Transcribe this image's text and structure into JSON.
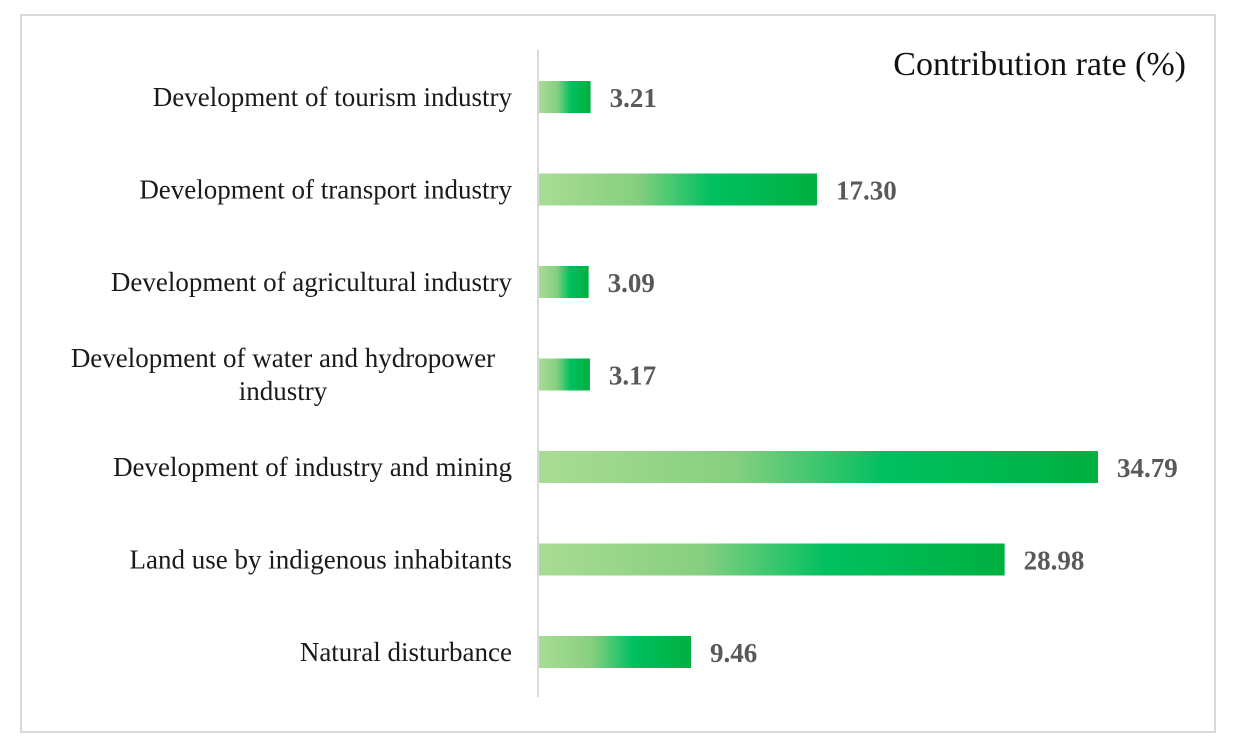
{
  "chart_data": {
    "type": "bar",
    "orientation": "horizontal",
    "title": "Contribution rate (%)",
    "xlabel": "",
    "ylabel": "",
    "categories": [
      [
        "Development of tourism industry"
      ],
      [
        "Development of transport industry"
      ],
      [
        "Development of agricultural industry"
      ],
      [
        "Development of water and hydropower",
        "industry"
      ],
      [
        "Development of industry and mining"
      ],
      [
        "Land use by indigenous inhabitants"
      ],
      [
        "Natural disturbance"
      ]
    ],
    "values": [
      3.21,
      17.3,
      3.09,
      3.17,
      34.79,
      28.98,
      9.46
    ],
    "value_labels": [
      "3.21",
      "17.30",
      "3.09",
      "3.17",
      "34.79",
      "28.98",
      "9.46"
    ],
    "xlim": [
      0,
      34.79
    ],
    "grid": false,
    "legend": "none",
    "colors": {
      "bar_start": "#a9dc95",
      "bar_mid": "#00c060",
      "bar_end": "#00b040",
      "axis": "#d9d9d9",
      "frame": "#d9d9d9",
      "value_text": "#595959",
      "label_text": "#1a1a1a"
    }
  }
}
